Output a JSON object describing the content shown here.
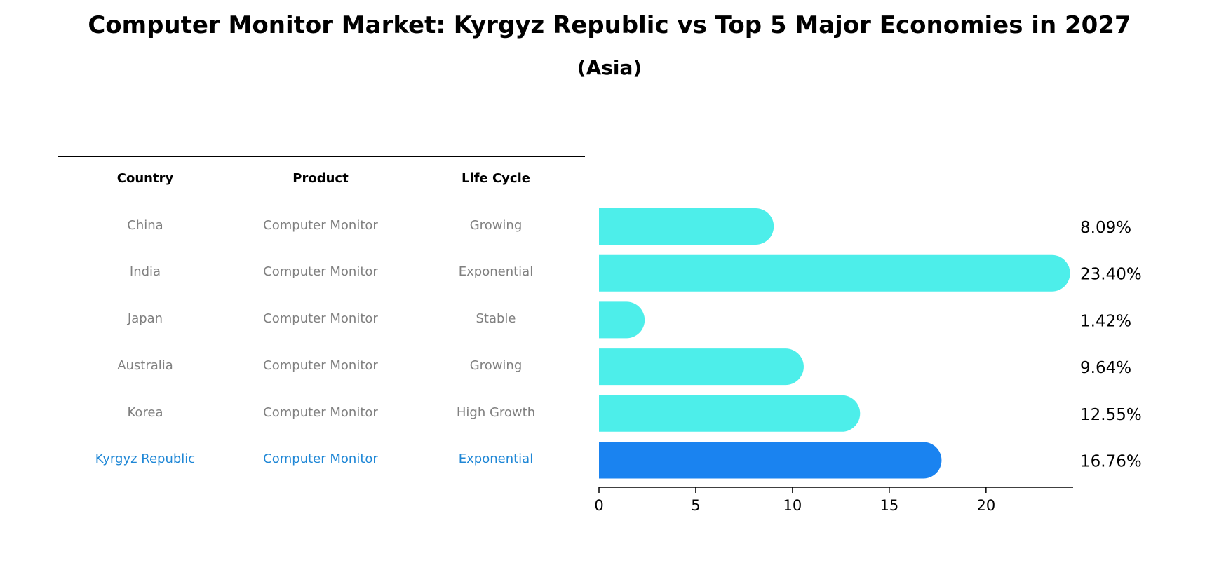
{
  "title": "Computer Monitor Market: Kyrgyz Republic vs Top 5 Major Economies in 2027",
  "subtitle": "(Asia)",
  "table": {
    "headers": [
      "Country",
      "Product",
      "Life Cycle"
    ],
    "rows": [
      [
        "China",
        "Computer Monitor",
        "Growing"
      ],
      [
        "India",
        "Computer Monitor",
        "Exponential"
      ],
      [
        "Japan",
        "Computer Monitor",
        "Stable"
      ],
      [
        "Australia",
        "Computer Monitor",
        "Growing"
      ],
      [
        "Korea",
        "Computer Monitor",
        "High Growth"
      ],
      [
        "Kyrgyz Republic",
        "Computer Monitor",
        "Exponential"
      ]
    ],
    "highlight_row": 5
  },
  "colors": {
    "bar": "#4deeea",
    "highlight_bar": "#1a83f0",
    "row_text": "#808080",
    "highlight_text": "#1f87d6"
  },
  "chart_data": {
    "type": "bar",
    "orientation": "horizontal",
    "categories": [
      "China",
      "India",
      "Japan",
      "Australia",
      "Korea",
      "Kyrgyz Republic"
    ],
    "values": [
      8.09,
      23.4,
      1.42,
      9.64,
      12.55,
      16.76
    ],
    "value_labels": [
      "8.09%",
      "23.40%",
      "1.42%",
      "9.64%",
      "12.55%",
      "16.76%"
    ],
    "xlim": [
      0,
      24.5
    ],
    "xticks": [
      "0",
      "5",
      "10",
      "15",
      "20"
    ],
    "grid": false
  }
}
